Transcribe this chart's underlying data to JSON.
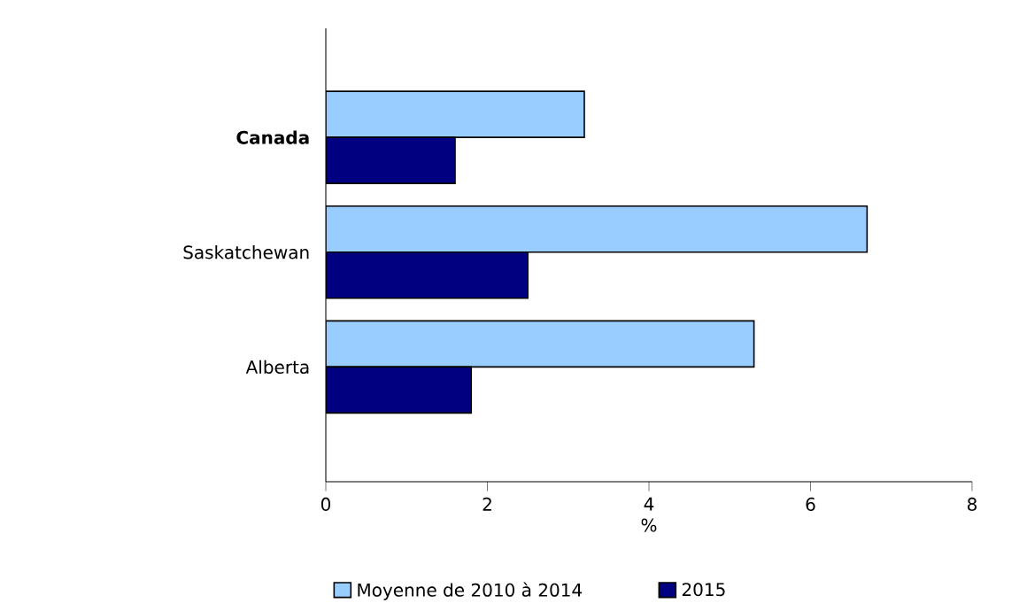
{
  "chart_data": {
    "type": "bar",
    "orientation": "horizontal",
    "categories": [
      "Canada",
      "Saskatchewan",
      "Alberta"
    ],
    "series": [
      {
        "name": "Moyenne de 2010 à 2014",
        "color": "#99ccff",
        "values": [
          3.2,
          6.7,
          5.3
        ]
      },
      {
        "name": "2015",
        "color": "#000080",
        "values": [
          1.6,
          2.5,
          1.8
        ]
      }
    ],
    "xlabel": "%",
    "xlim": [
      0,
      8
    ],
    "xticks": [
      0,
      2,
      4,
      6,
      8
    ],
    "legend": "bottom",
    "grid": false
  }
}
